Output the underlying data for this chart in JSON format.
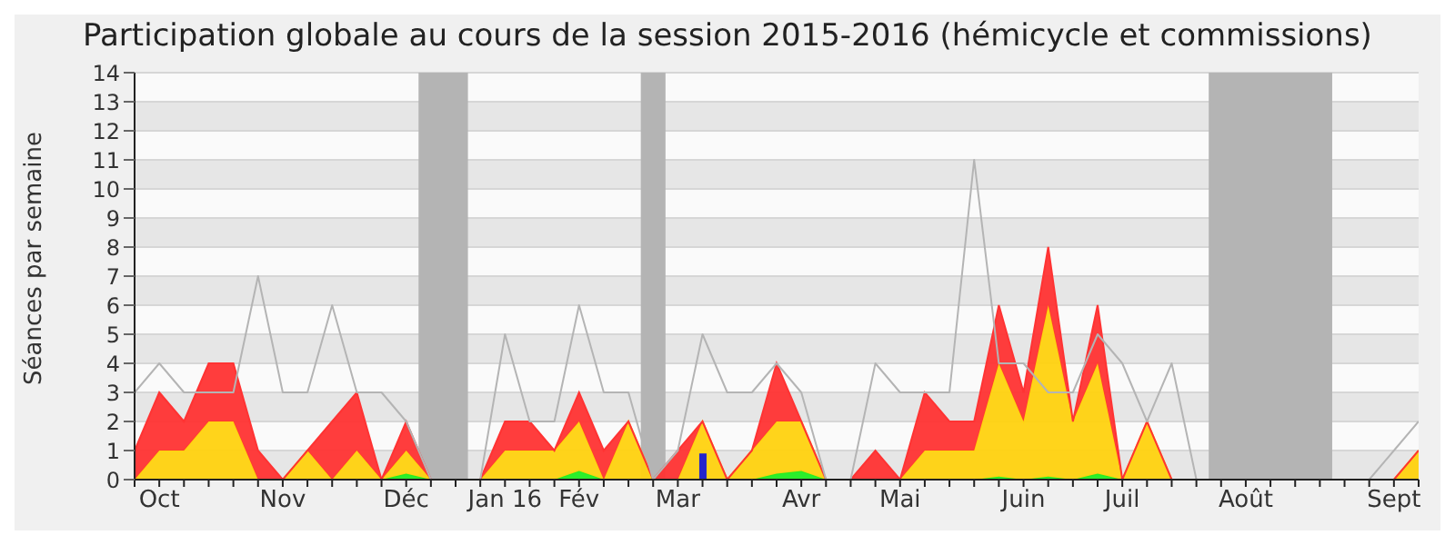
{
  "chart_data": {
    "type": "area",
    "title": "Participation globale au cours de la session 2015-2016 (hémicycle et commissions)",
    "ylabel": "Séances par semaine",
    "categories": [
      null,
      "Oct",
      null,
      null,
      null,
      null,
      "Nov",
      null,
      null,
      null,
      null,
      "Déc",
      null,
      null,
      null,
      "Jan 16",
      null,
      null,
      "Fév",
      null,
      null,
      null,
      "Mar",
      null,
      null,
      null,
      null,
      "Avr",
      null,
      null,
      null,
      "Mai",
      null,
      null,
      null,
      null,
      "Juin",
      null,
      null,
      null,
      "Juil",
      null,
      null,
      null,
      null,
      "Août",
      null,
      null,
      null,
      null,
      null,
      "Sept",
      null
    ],
    "ylim": [
      0,
      14
    ],
    "yticks": [
      0,
      1,
      2,
      3,
      4,
      5,
      6,
      7,
      8,
      9,
      10,
      11,
      12,
      13,
      14
    ],
    "grid": "y",
    "stacked": true,
    "legend": false,
    "series": [
      {
        "color": "#22ee22",
        "values": [
          0,
          0,
          0,
          0,
          0,
          0,
          0,
          0,
          0,
          0,
          0,
          0.2,
          0,
          0,
          0,
          0,
          0,
          0,
          0.3,
          0,
          0,
          0,
          0,
          0,
          0,
          0,
          0.2,
          0.3,
          0,
          0,
          0,
          0,
          0,
          0,
          0,
          0.1,
          0,
          0.1,
          0,
          0.2,
          0,
          0,
          0,
          0,
          0,
          0,
          0,
          0,
          0,
          0,
          0,
          0,
          0
        ]
      },
      {
        "color": "#ffd20f",
        "values": [
          0,
          1,
          1,
          2,
          2,
          0,
          0,
          1,
          0,
          1,
          0,
          0.8,
          0,
          0,
          0,
          1,
          1,
          1,
          1.7,
          0,
          2,
          0,
          0,
          2,
          0,
          1,
          1.8,
          1.7,
          0,
          0,
          0,
          0,
          1,
          1,
          1,
          3.9,
          2,
          5.9,
          2,
          3.8,
          0,
          2,
          0,
          0,
          0,
          0,
          0,
          0,
          0,
          0,
          0,
          0,
          1
        ]
      },
      {
        "color": "#ff3333",
        "values": [
          1,
          2,
          1,
          2,
          2,
          1,
          0,
          0,
          2,
          2,
          0,
          1,
          0,
          0,
          0,
          1,
          1,
          0,
          1,
          1,
          0,
          0,
          1,
          0,
          0,
          0,
          2,
          0,
          0,
          0,
          1,
          0,
          2,
          1,
          1,
          2,
          1,
          2,
          0,
          2,
          0,
          0,
          0,
          0,
          0,
          0,
          0,
          0,
          0,
          0,
          0,
          0,
          0
        ]
      },
      {
        "type": "line",
        "color": "#b4b4b4",
        "values": [
          3,
          4,
          3,
          3,
          3,
          7,
          3,
          3,
          6,
          3,
          3,
          2,
          0,
          0,
          0,
          5,
          2,
          2,
          6,
          3,
          3,
          0,
          1,
          5,
          3,
          3,
          4,
          3,
          0,
          0,
          4,
          3,
          3,
          3,
          11,
          4,
          4,
          3,
          3,
          5,
          4,
          2,
          4,
          0,
          0,
          0,
          0,
          0,
          0,
          0,
          0,
          1,
          2
        ]
      },
      {
        "type": "bar",
        "color": "#2424cc",
        "values": [
          null,
          null,
          null,
          null,
          null,
          null,
          null,
          null,
          null,
          null,
          null,
          null,
          null,
          null,
          null,
          null,
          null,
          null,
          null,
          null,
          null,
          null,
          null,
          0.9,
          null,
          null,
          null,
          null,
          null,
          null,
          null,
          null,
          null,
          null,
          null,
          null,
          null,
          null,
          null,
          null,
          null,
          null,
          null,
          null,
          null,
          null,
          null,
          null,
          null,
          null,
          null,
          null,
          null
        ]
      }
    ]
  }
}
